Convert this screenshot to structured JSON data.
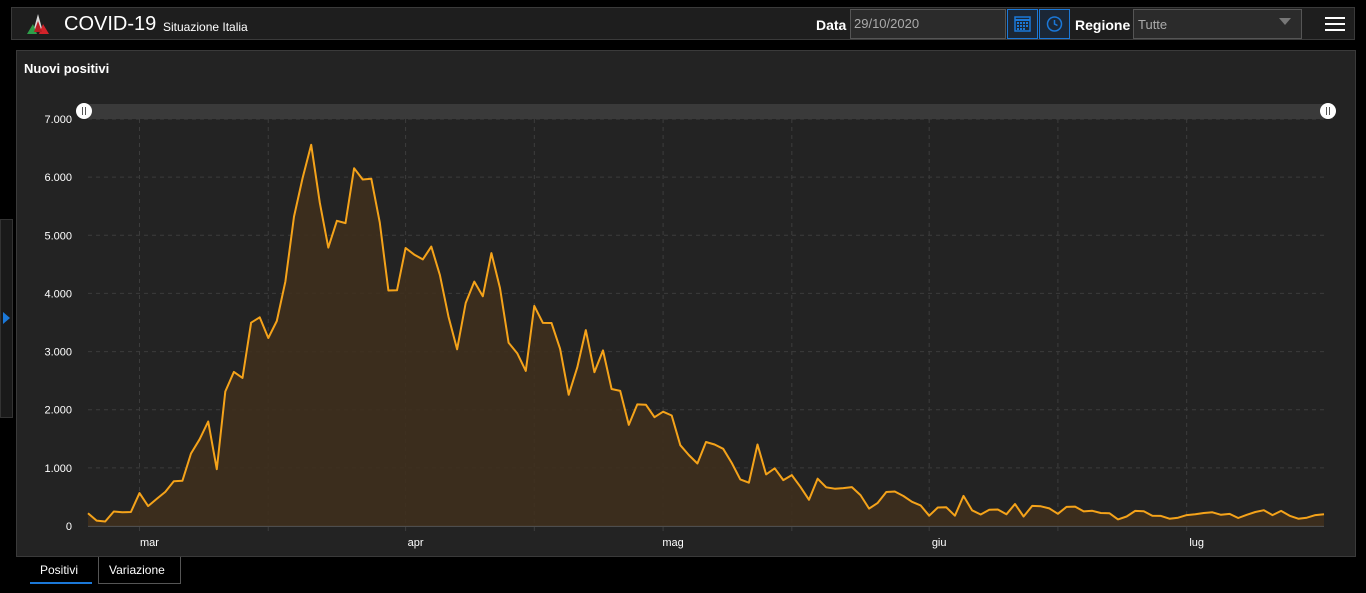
{
  "header": {
    "title": "COVID-19",
    "subtitle": "Situazione Italia",
    "date_label": "Data",
    "date_value": "29/10/2020",
    "region_label": "Regione",
    "region_value": "Tutte"
  },
  "panel": {
    "title": "Nuovi positivi"
  },
  "tabs": [
    {
      "label": "Positivi",
      "active": true
    },
    {
      "label": "Variazione",
      "active": false
    }
  ],
  "colors": {
    "line": "#f5a31a",
    "fill": "#3e2f1d",
    "accent": "#1b78d8"
  },
  "icons": [
    "logo-icon",
    "calendar-icon",
    "clock-icon",
    "menu-icon",
    "expand-arrow-icon",
    "slider-handle-icon"
  ],
  "chart_data": {
    "type": "area",
    "series_name": "Nuovi positivi",
    "x_tick_labels": [
      "mar",
      "apr",
      "mag",
      "giu",
      "lug"
    ],
    "y_tick_labels": [
      "0",
      "1.000",
      "2.000",
      "3.000",
      "4.000",
      "5.000",
      "6.000",
      "7.000"
    ],
    "ylim": [
      0,
      7000
    ],
    "grid": true,
    "x_start": "2020-02-24",
    "values": [
      221,
      93,
      78,
      250,
      238,
      240,
      566,
      342,
      466,
      587,
      769,
      778,
      1247,
      1492,
      1797,
      977,
      2313,
      2651,
      2547,
      3497,
      3590,
      3233,
      3526,
      4207,
      5322,
      5986,
      6557,
      5560,
      4789,
      5249,
      5210,
      6153,
      5959,
      5974,
      5217,
      4050,
      4053,
      4782,
      4668,
      4585,
      4805,
      4316,
      3599,
      3039,
      3836,
      4204,
      3951,
      4694,
      4092,
      3153,
      2972,
      2667,
      3786,
      3493,
      3491,
      3047,
      2256,
      2729,
      3370,
      2646,
      3021,
      2357,
      2324,
      1739,
      2091,
      2086,
      1872,
      1965,
      1900,
      1389,
      1221,
      1075,
      1444,
      1401,
      1327,
      1083,
      802,
      744,
      1402,
      888,
      992,
      789,
      875,
      675,
      451,
      813,
      665,
      642,
      652,
      669,
      531,
      300,
      397,
      584,
      593,
      516,
      416,
      355,
      178,
      318,
      321,
      177,
      518,
      270,
      197,
      280,
      283,
      202,
      379,
      163,
      346,
      338,
      303,
      210,
      329,
      333,
      251,
      262,
      224,
      221,
      113,
      163,
      259,
      255,
      175,
      174,
      126,
      142,
      187,
      201,
      223,
      235,
      192,
      208,
      138,
      193,
      240,
      271,
      187,
      259,
      175,
      126,
      142,
      187,
      201
    ]
  }
}
